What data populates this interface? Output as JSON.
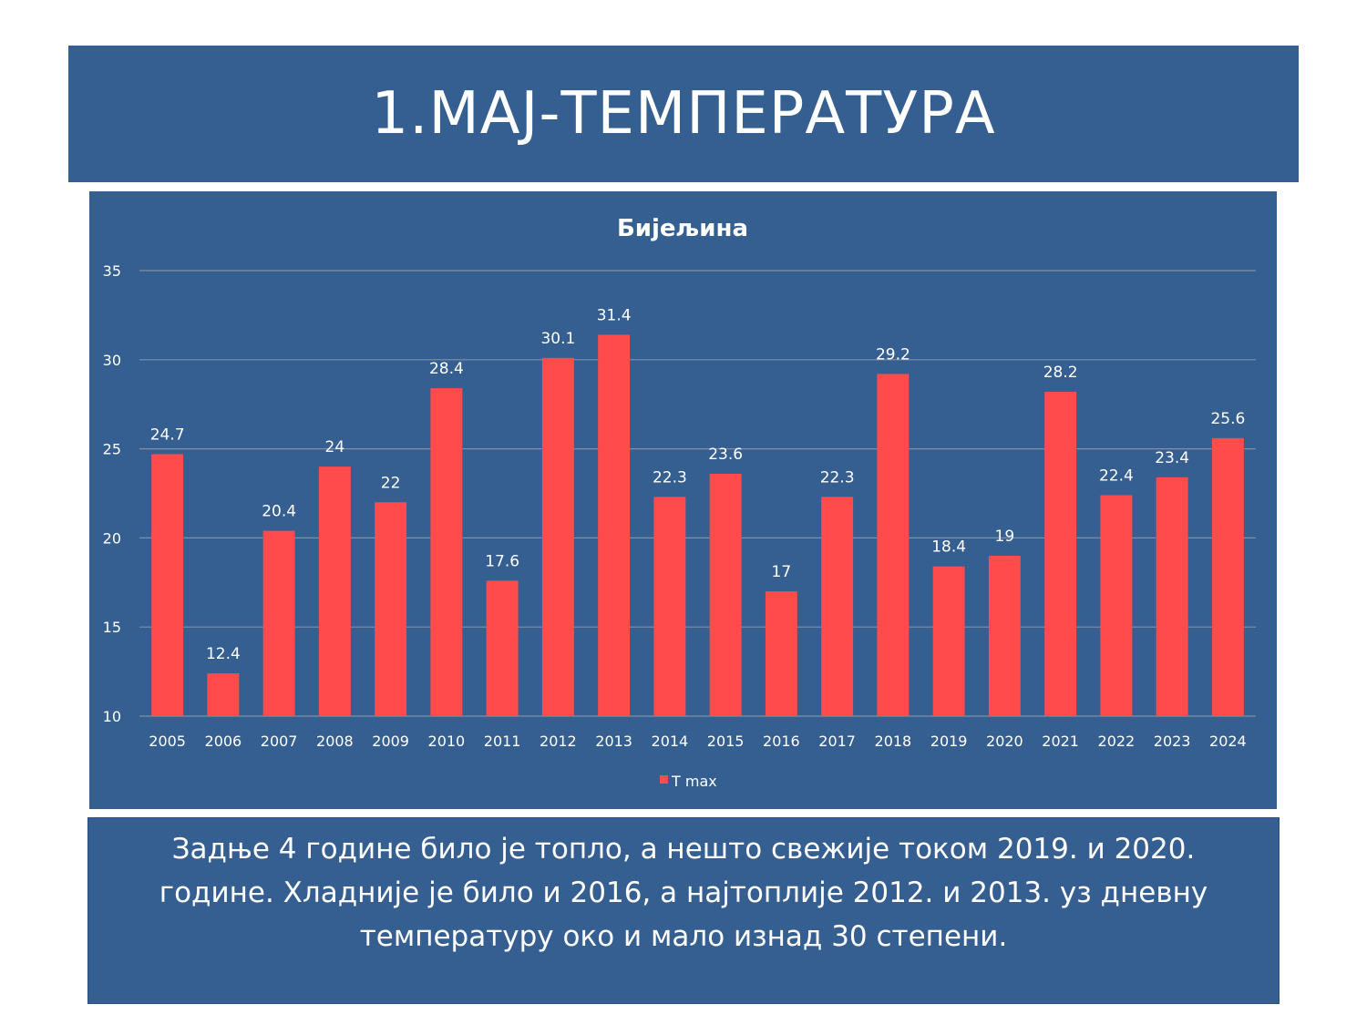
{
  "slide": {
    "title": "1.МАЈ-ТЕМПЕРАТУРА",
    "caption": "Задње 4 године било је топло, а нешто свежије током 2019. и 2020. године. Хладније је било и 2016, а најтоплије 2012. и 2013. уз дневну температуру око и мало изнад 30 степени."
  },
  "colors": {
    "background": "#365f91",
    "bar": "#ff4b4b",
    "text": "#ffffff",
    "gridline": "#7f8fa8"
  },
  "chart_data": {
    "type": "bar",
    "title": "Бијељина",
    "xlabel": "",
    "ylabel": "",
    "categories": [
      "2005",
      "2006",
      "2007",
      "2008",
      "2009",
      "2010",
      "2011",
      "2012",
      "2013",
      "2014",
      "2015",
      "2016",
      "2017",
      "2018",
      "2019",
      "2020",
      "2021",
      "2022",
      "2023",
      "2024"
    ],
    "series": [
      {
        "name": "T max",
        "values": [
          24.7,
          12.4,
          20.4,
          24,
          22,
          28.4,
          17.6,
          30.1,
          31.4,
          22.3,
          23.6,
          17,
          22.3,
          29.2,
          18.4,
          19,
          28.2,
          22.4,
          23.4,
          25.6
        ],
        "data_labels": [
          "24.7",
          "12.4",
          "20.4",
          "24",
          "22",
          "28.4",
          "17.6",
          "30.1",
          "31.4",
          "22.3",
          "23.6",
          "17",
          "22.3",
          "29.2",
          "18.4",
          "19",
          "28.2",
          "22.4",
          "23.4",
          "25.6"
        ]
      }
    ],
    "ylim": [
      10,
      35
    ],
    "yticks": [
      "10",
      "15",
      "20",
      "25",
      "30",
      "35"
    ],
    "grid": true,
    "legend_position": "bottom"
  }
}
